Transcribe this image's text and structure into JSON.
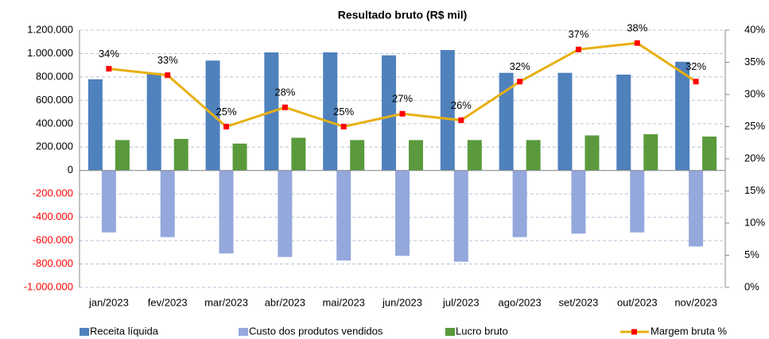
{
  "chart_data": {
    "type": "bar-line",
    "title": "Resultado bruto (R$ mil)",
    "categories": [
      "jan/2023",
      "fev/2023",
      "mar/2023",
      "abr/2023",
      "mai/2023",
      "jun/2023",
      "jul/2023",
      "ago/2023",
      "set/2023",
      "out/2023",
      "nov/2023"
    ],
    "series": [
      {
        "name": "Receita líquida",
        "type": "bar",
        "color": "#4f81bd",
        "values": [
          780000,
          835000,
          940000,
          1010000,
          1010000,
          985000,
          1030000,
          835000,
          835000,
          820000,
          930000
        ]
      },
      {
        "name": "Custo dos produtos vendidos",
        "type": "bar",
        "color": "#95a8dc",
        "values": [
          -530000,
          -570000,
          -710000,
          -740000,
          -770000,
          -730000,
          -780000,
          -570000,
          -540000,
          -530000,
          -650000
        ]
      },
      {
        "name": "Lucro bruto",
        "type": "bar",
        "color": "#5a9a3c",
        "values": [
          260000,
          270000,
          230000,
          280000,
          260000,
          260000,
          260000,
          260000,
          300000,
          310000,
          290000
        ]
      },
      {
        "name": "Margem bruta %",
        "type": "line",
        "axis": "y2",
        "color": "#e6b012",
        "marker_color": "#ff0000",
        "values": [
          34,
          33,
          25,
          28,
          25,
          27,
          26,
          32,
          37,
          38,
          32
        ],
        "value_labels": [
          "34%",
          "33%",
          "25%",
          "28%",
          "25%",
          "27%",
          "26%",
          "32%",
          "37%",
          "38%",
          "32%"
        ]
      }
    ],
    "ylim": [
      -1000000,
      1200000
    ],
    "yticks": [
      {
        "value": -1000000,
        "label": "-1.000.000"
      },
      {
        "value": -800000,
        "label": "-800.000"
      },
      {
        "value": -600000,
        "label": "-600.000"
      },
      {
        "value": -400000,
        "label": "-400.000"
      },
      {
        "value": -200000,
        "label": "-200.000"
      },
      0,
      {
        "value": 200000,
        "label": "200.000"
      },
      {
        "value": 400000,
        "label": "400.000"
      },
      {
        "value": 600000,
        "label": "600.000"
      },
      {
        "value": 800000,
        "label": "800.000"
      },
      {
        "value": 1000000,
        "label": "1.000.000"
      },
      {
        "value": 1200000,
        "label": "1.200.000"
      }
    ],
    "negative_tick_color": "#ff0000",
    "y2lim": [
      0,
      40
    ],
    "y2ticks": [
      {
        "value": 0,
        "label": "0%"
      },
      {
        "value": 5,
        "label": "5%"
      },
      {
        "value": 10,
        "label": "10%"
      },
      {
        "value": 15,
        "label": "15%"
      },
      {
        "value": 20,
        "label": "20%"
      },
      {
        "value": 25,
        "label": "25%"
      },
      {
        "value": 30,
        "label": "30%"
      },
      {
        "value": 35,
        "label": "35%"
      },
      {
        "value": 40,
        "label": "40%"
      }
    ],
    "grid": true,
    "legend": "bottom"
  }
}
